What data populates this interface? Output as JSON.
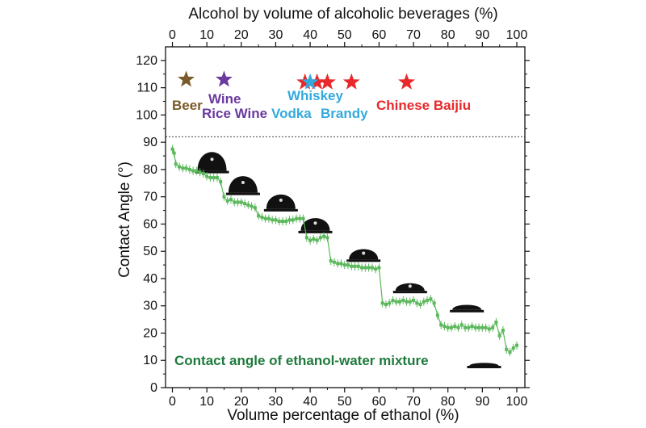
{
  "chart_data": {
    "type": "scatter",
    "title": "",
    "xlabel": "Volume percentage of ethanol  (%)",
    "ylabel": "Contact Angle (°)",
    "x2label": "Alcohol by volume of alcoholic beverages (%)",
    "xlim": [
      0,
      100
    ],
    "ylim": [
      0,
      125
    ],
    "x_ticks": [
      0,
      10,
      20,
      30,
      40,
      50,
      60,
      70,
      80,
      90,
      100
    ],
    "y_ticks": [
      0,
      10,
      20,
      30,
      40,
      50,
      60,
      70,
      80,
      90,
      100,
      110,
      120
    ],
    "reference_line_y": 92,
    "annotation": "Contact angle of ethanol-water mixture",
    "colors": {
      "data": "#5cb85c",
      "annotation": "#1e7a3c",
      "beer": "#7a5a2a",
      "wine": "#6a3a9e",
      "vodka_whiskey": "#33aadd",
      "brandy_baijiu": "#e8282a",
      "droplet": "#111111"
    },
    "beverages": [
      {
        "label": "Beer",
        "x": 4,
        "color": "#7a5a2a"
      },
      {
        "label": "Wine",
        "x": 15,
        "color": "#6a3a9e"
      },
      {
        "label": "Rice Wine",
        "x": 15,
        "color": "#6a3a9e"
      },
      {
        "label": "Whiskey",
        "x": 40,
        "color": "#33aadd"
      },
      {
        "label": "Vodka",
        "x": 40,
        "color": "#33aadd"
      },
      {
        "label": "Brandy",
        "x": 45,
        "color": "#33aadd"
      },
      {
        "label": "Chinese Baijiu",
        "x": 68,
        "color": "#e8282a"
      }
    ],
    "beverage_stars": [
      {
        "x": 4,
        "y": 113,
        "color": "#7a5a2a"
      },
      {
        "x": 15,
        "y": 113,
        "color": "#6a3a9e"
      },
      {
        "x": 38.5,
        "y": 112,
        "color": "#e8282a"
      },
      {
        "x": 42,
        "y": 112,
        "color": "#e8282a"
      },
      {
        "x": 45,
        "y": 112,
        "color": "#e8282a"
      },
      {
        "x": 52,
        "y": 112,
        "color": "#e8282a"
      },
      {
        "x": 68,
        "y": 112,
        "color": "#e8282a"
      },
      {
        "x": 40,
        "y": 112,
        "color": "#33aadd"
      }
    ],
    "droplets": [
      {
        "x": 11.5,
        "y": 79.5,
        "angle": 82
      },
      {
        "x": 20.5,
        "y": 71.5,
        "angle": 72
      },
      {
        "x": 31.5,
        "y": 65.5,
        "angle": 63
      },
      {
        "x": 41.5,
        "y": 57.5,
        "angle": 55
      },
      {
        "x": 55.5,
        "y": 47,
        "angle": 45
      },
      {
        "x": 69,
        "y": 35.5,
        "angle": 33
      },
      {
        "x": 85.5,
        "y": 28.5,
        "angle": 22
      },
      {
        "x": 90.5,
        "y": 8,
        "angle": 10
      }
    ],
    "series": [
      {
        "x": [
          0,
          0.5,
          1,
          2,
          3,
          4,
          5,
          6,
          7,
          8,
          9,
          10,
          11,
          12,
          13,
          14,
          15,
          16,
          17,
          18,
          19,
          20,
          21,
          22,
          23,
          24,
          25,
          26,
          27,
          28,
          29,
          30,
          31,
          32,
          33,
          34,
          35,
          36,
          37,
          38,
          39,
          40,
          41,
          42,
          43,
          44,
          45,
          46,
          47,
          48,
          49,
          50,
          51,
          52,
          53,
          54,
          55,
          56,
          57,
          58,
          59,
          60,
          61,
          62,
          63,
          64,
          65,
          66,
          67,
          68,
          69,
          70,
          71,
          72,
          73,
          74,
          75,
          76,
          77,
          78,
          79,
          80,
          81,
          82,
          83,
          84,
          85,
          86,
          87,
          88,
          89,
          90,
          91,
          92,
          93,
          94,
          95,
          96,
          97,
          98,
          99,
          100
        ],
        "y": [
          87.5,
          86,
          82,
          81,
          80.5,
          80.5,
          80,
          79.5,
          79.5,
          79,
          78.5,
          77.5,
          77,
          77,
          77,
          75.5,
          70,
          68.5,
          69,
          68,
          68,
          68,
          67.5,
          67,
          66.5,
          66,
          63,
          62.5,
          62,
          62,
          61.5,
          61.5,
          61,
          61,
          61,
          61.5,
          61.5,
          62,
          62,
          62,
          55,
          54,
          54.5,
          54,
          55,
          55.5,
          55,
          46.5,
          46,
          45.5,
          45.5,
          45,
          45,
          44.5,
          44.5,
          44.5,
          44,
          44,
          44,
          44,
          43.5,
          44,
          31,
          30.5,
          31,
          32,
          31.5,
          31.5,
          32,
          31.5,
          31.5,
          32,
          31,
          30.5,
          31.5,
          32,
          32.5,
          31,
          26.5,
          23,
          22.5,
          22,
          22,
          22.5,
          22,
          23,
          22,
          22,
          22.5,
          22,
          22,
          22,
          22,
          21.5,
          22,
          24,
          19,
          21,
          14,
          13,
          14.5,
          15.5
        ],
        "y_err": 1.5
      }
    ]
  }
}
